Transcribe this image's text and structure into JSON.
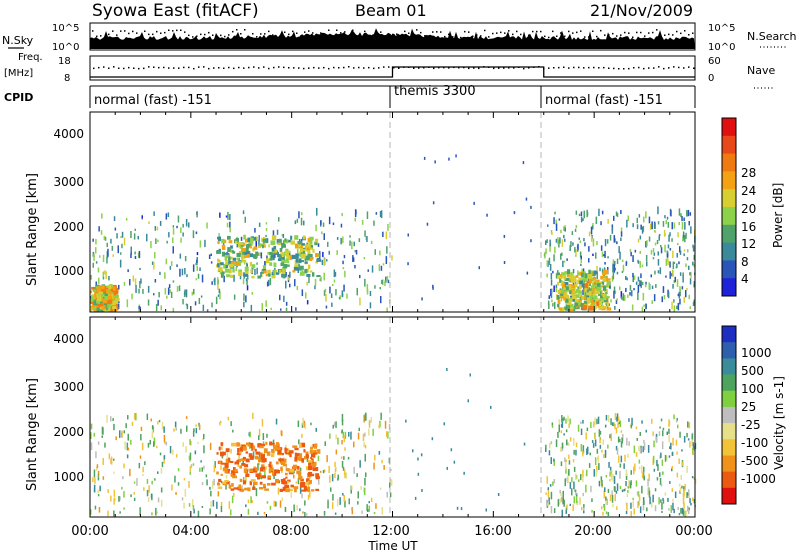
{
  "header": {
    "station": "Syowa East (fitACF)",
    "beam": "Beam 01",
    "date": "21/Nov/2009"
  },
  "top_panels": {
    "nsky_label": "N.Sky",
    "nsky_ticks": [
      "10^5",
      "10^0"
    ],
    "nsearch_label": "N.Search",
    "nsearch_ticks": [
      "10^5",
      "10^0"
    ],
    "freq_label": "Freq.",
    "freq_unit": "[MHz]",
    "freq_ticks": [
      "18",
      "8"
    ],
    "nave_label": "Nave",
    "nave_ticks": [
      "60",
      "0"
    ],
    "cpid_label": "CPID"
  },
  "cpid_segments": [
    {
      "label": "normal (fast) -151",
      "start_hour": 0,
      "end_hour": 12
    },
    {
      "label": "themis 3300",
      "start_hour": 12,
      "end_hour": 18
    },
    {
      "label": "normal (fast) -151",
      "start_hour": 18,
      "end_hour": 24
    }
  ],
  "x_axis": {
    "title": "Time UT",
    "ticks": [
      "00:00",
      "04:00",
      "08:00",
      "12:00",
      "16:00",
      "20:00",
      "00:00"
    ],
    "range_hours": [
      0,
      24
    ]
  },
  "y_axis": {
    "title": "Slant Range [km]",
    "ticks": [
      "1000",
      "2000",
      "3000",
      "4000"
    ],
    "range_km": [
      180,
      4500
    ]
  },
  "power_scale": {
    "title": "Power [dB]",
    "labels": [
      "28",
      "24",
      "20",
      "16",
      "12",
      "8",
      "4"
    ],
    "colors": [
      "#1e22d8",
      "#2a55b8",
      "#3b8a9c",
      "#4fa36a",
      "#8cd24a",
      "#d7cf32",
      "#f4a214",
      "#f07a12",
      "#e8481a",
      "#e01010"
    ]
  },
  "velocity_scale": {
    "title": "Velocity [m s-1]",
    "labels": [
      "1000",
      "500",
      "100",
      "25",
      "-25",
      "-100",
      "-500",
      "-1000"
    ],
    "colors": [
      "#1c2fc0",
      "#2e5fae",
      "#3a8c9a",
      "#4ea35e",
      "#7fd040",
      "#bebebe",
      "#e6e08a",
      "#f2c238",
      "#f0921a",
      "#ec5a12",
      "#e01010"
    ]
  },
  "chart_data": [
    {
      "type": "heatmap",
      "title": "Power [dB]",
      "xlabel": "Time UT",
      "ylabel": "Slant Range [km]",
      "xlim_hours": [
        0,
        24
      ],
      "ylim_km": [
        180,
        4500
      ],
      "regions": [
        {
          "t_start": 0.0,
          "t_end": 12.0,
          "r_start": 180,
          "r_end": 2300,
          "description": "sparse scatter",
          "power_db": 10
        },
        {
          "t_start": 5.0,
          "t_end": 9.0,
          "r_start": 900,
          "r_end": 1750,
          "description": "enhanced echo band",
          "power_db": 14
        },
        {
          "t_start": 0.0,
          "t_end": 1.0,
          "r_start": 180,
          "r_end": 700,
          "description": "near range echoes",
          "power_db": 18
        },
        {
          "t_start": 18.0,
          "t_end": 24.0,
          "r_start": 180,
          "r_end": 2300,
          "description": "sparse scatter",
          "power_db": 10
        },
        {
          "t_start": 18.5,
          "t_end": 20.5,
          "r_start": 200,
          "r_end": 1000,
          "description": "near range echoes",
          "power_db": 16
        }
      ]
    },
    {
      "type": "heatmap",
      "title": "Velocity [m s-1]",
      "xlabel": "Time UT",
      "ylabel": "Slant Range [km]",
      "xlim_hours": [
        0,
        24
      ],
      "ylim_km": [
        180,
        4500
      ],
      "regions": [
        {
          "t_start": 0.0,
          "t_end": 12.0,
          "r_start": 180,
          "r_end": 2300,
          "description": "sparse scatter",
          "velocity_ms": 0
        },
        {
          "t_start": 5.0,
          "t_end": 9.0,
          "r_start": 700,
          "r_end": 1750,
          "description": "westward flow band",
          "velocity_ms": -500
        },
        {
          "t_start": 18.0,
          "t_end": 24.0,
          "r_start": 180,
          "r_end": 2300,
          "description": "sparse scatter",
          "velocity_ms": 100
        }
      ]
    }
  ]
}
